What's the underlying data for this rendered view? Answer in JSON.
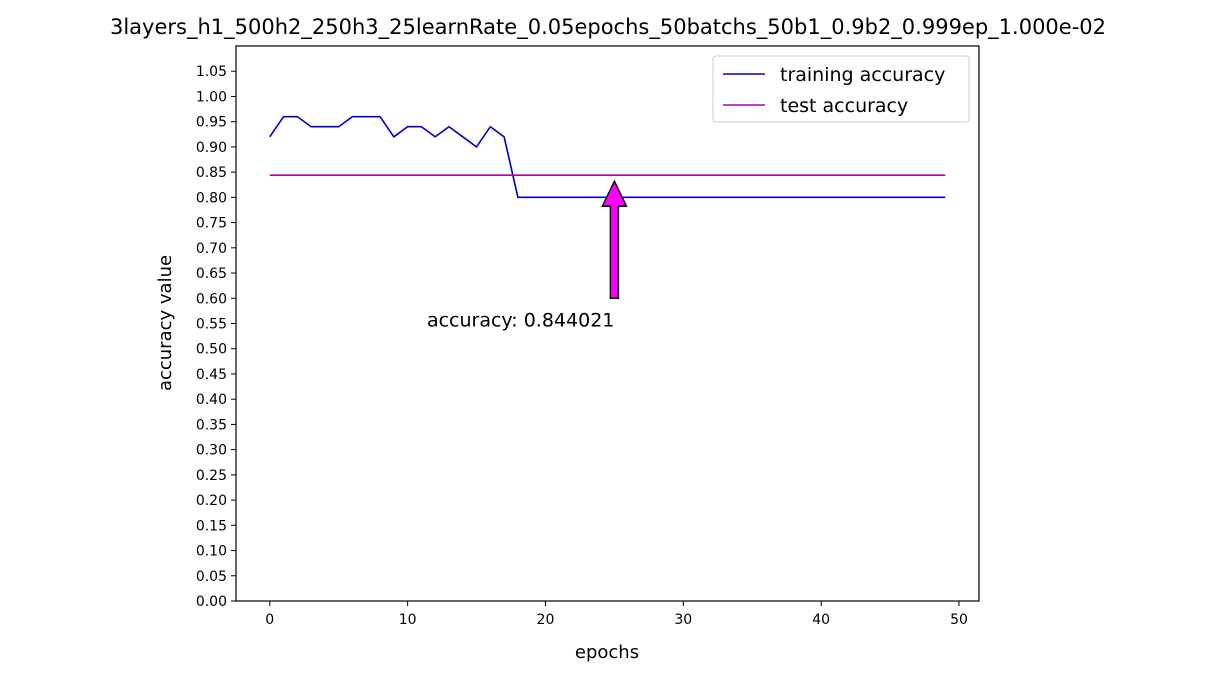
{
  "chart_data": {
    "type": "line",
    "title": "3layers_h1_500h2_250h3_25learnRate_0.05epochs_50batchs_50b1_0.9b2_0.999ep_1.000e-02",
    "xlabel": "epochs",
    "ylabel": "accuracy value",
    "xlim": [
      -2.45,
      51.45
    ],
    "ylim": [
      0,
      1.1
    ],
    "x_ticks": [
      0,
      10,
      20,
      30,
      40,
      50
    ],
    "y_ticks": [
      0.0,
      0.05,
      0.1,
      0.15,
      0.2,
      0.25,
      0.3,
      0.35,
      0.4,
      0.45,
      0.5,
      0.55,
      0.6,
      0.65,
      0.7,
      0.75,
      0.8,
      0.85,
      0.9,
      0.95,
      1.0,
      1.05
    ],
    "x_tick_labels": [
      "0",
      "10",
      "20",
      "30",
      "40",
      "50"
    ],
    "y_tick_labels": [
      "0.00",
      "0.05",
      "0.10",
      "0.15",
      "0.20",
      "0.25",
      "0.30",
      "0.35",
      "0.40",
      "0.45",
      "0.50",
      "0.55",
      "0.60",
      "0.65",
      "0.70",
      "0.75",
      "0.80",
      "0.85",
      "0.90",
      "0.95",
      "1.00",
      "1.05"
    ],
    "grid": false,
    "legend_position": "top-right",
    "series": [
      {
        "name": "training accuracy",
        "color": "#0000cc",
        "x": [
          0,
          1,
          2,
          3,
          4,
          5,
          6,
          7,
          8,
          9,
          10,
          11,
          12,
          13,
          14,
          15,
          16,
          17,
          18,
          19,
          20,
          21,
          22,
          23,
          24,
          25,
          26,
          27,
          28,
          29,
          30,
          31,
          32,
          33,
          34,
          35,
          36,
          37,
          38,
          39,
          40,
          41,
          42,
          43,
          44,
          45,
          46,
          47,
          48,
          49
        ],
        "y": [
          0.92,
          0.96,
          0.96,
          0.94,
          0.94,
          0.94,
          0.96,
          0.96,
          0.96,
          0.92,
          0.94,
          0.94,
          0.92,
          0.94,
          0.92,
          0.9,
          0.94,
          0.92,
          0.8,
          0.8,
          0.8,
          0.8,
          0.8,
          0.8,
          0.8,
          0.8,
          0.8,
          0.8,
          0.8,
          0.8,
          0.8,
          0.8,
          0.8,
          0.8,
          0.8,
          0.8,
          0.8,
          0.8,
          0.8,
          0.8,
          0.8,
          0.8,
          0.8,
          0.8,
          0.8,
          0.8,
          0.8,
          0.8,
          0.8,
          0.8
        ]
      },
      {
        "name": "test accuracy",
        "color": "#b000b0",
        "x": [
          0,
          49
        ],
        "y": [
          0.844021,
          0.844021
        ]
      }
    ],
    "annotation": {
      "text": "accuracy: 0.844021",
      "xy": [
        25,
        0.832
      ],
      "xytext": [
        25,
        0.6
      ],
      "arrow_color": "#ff00ff"
    }
  }
}
